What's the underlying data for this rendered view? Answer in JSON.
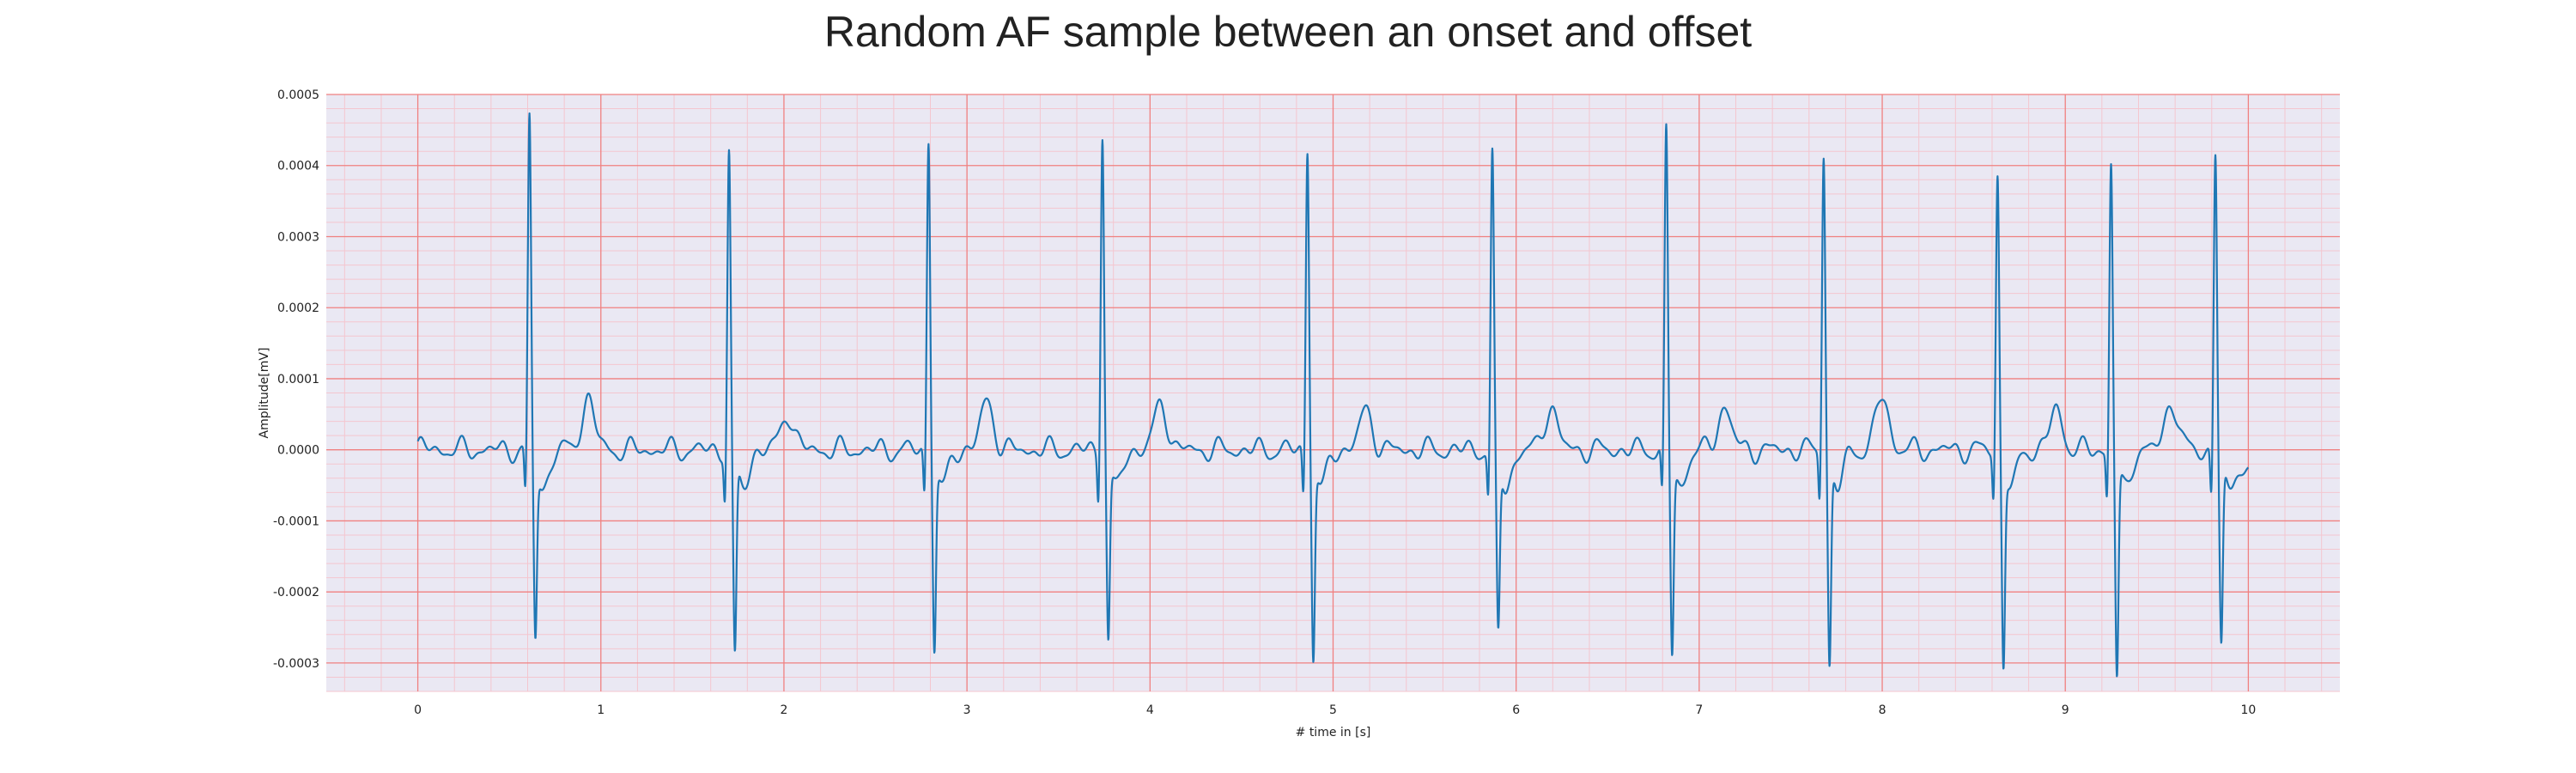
{
  "chart_data": {
    "type": "line",
    "title": "Random AF sample between an onset and offset",
    "xlabel": "# time in [s]",
    "ylabel": "Amplitude[mV]",
    "xlim": [
      -0.5,
      10.5
    ],
    "ylim": [
      -0.00034,
      0.0005
    ],
    "xticks": [
      "0",
      "1",
      "2",
      "3",
      "4",
      "5",
      "6",
      "7",
      "8",
      "9",
      "10"
    ],
    "yticks": [
      "-0.0003",
      "-0.0002",
      "-0.0001",
      "0.0000",
      "0.0001",
      "0.0002",
      "0.0003",
      "0.0004",
      "0.0005"
    ],
    "grid": true,
    "line_color": "#1f77b4",
    "major_grid_color": "#f08080",
    "minor_grid_color": "#f4c6cf",
    "background_color": "#eae8f3",
    "series": [
      {
        "beats": [
          {
            "t": 0.61,
            "r": 0.000465,
            "s": -0.000245
          },
          {
            "t": 1.7,
            "r": 0.000422,
            "s": -0.000275
          },
          {
            "t": 2.79,
            "r": 0.000442,
            "s": -0.000258
          },
          {
            "t": 3.74,
            "r": 0.000452,
            "s": -0.000248
          },
          {
            "t": 4.86,
            "r": 0.00043,
            "s": -0.000272
          },
          {
            "t": 5.87,
            "r": 0.000415,
            "s": -0.000242
          },
          {
            "t": 6.82,
            "r": 0.000452,
            "s": -0.000268
          },
          {
            "t": 7.68,
            "r": 0.000425,
            "s": -0.000288
          },
          {
            "t": 8.63,
            "r": 0.000387,
            "s": -0.000282
          },
          {
            "t": 9.25,
            "r": 0.000405,
            "s": -0.000302
          },
          {
            "t": 9.82,
            "r": 0.000424,
            "s": -0.000258
          }
        ],
        "t_waves": [
          {
            "t": 0.93,
            "a": 7.2e-05
          },
          {
            "t": 2.02,
            "a": 5.2e-05
          },
          {
            "t": 3.11,
            "a": 6.8e-05
          },
          {
            "t": 4.06,
            "a": 6.5e-05
          },
          {
            "t": 5.18,
            "a": 5.5e-05
          },
          {
            "t": 6.19,
            "a": 6.2e-05
          },
          {
            "t": 7.14,
            "a": 6.2e-05
          },
          {
            "t": 8.0,
            "a": 7.5e-05
          },
          {
            "t": 8.95,
            "a": 5.5e-05
          },
          {
            "t": 9.58,
            "a": 6.8e-05
          }
        ],
        "start": {
          "t": 0.0,
          "v": 1.2e-05
        },
        "end": {
          "t": 10.0,
          "v": -2.5e-05
        }
      }
    ]
  }
}
